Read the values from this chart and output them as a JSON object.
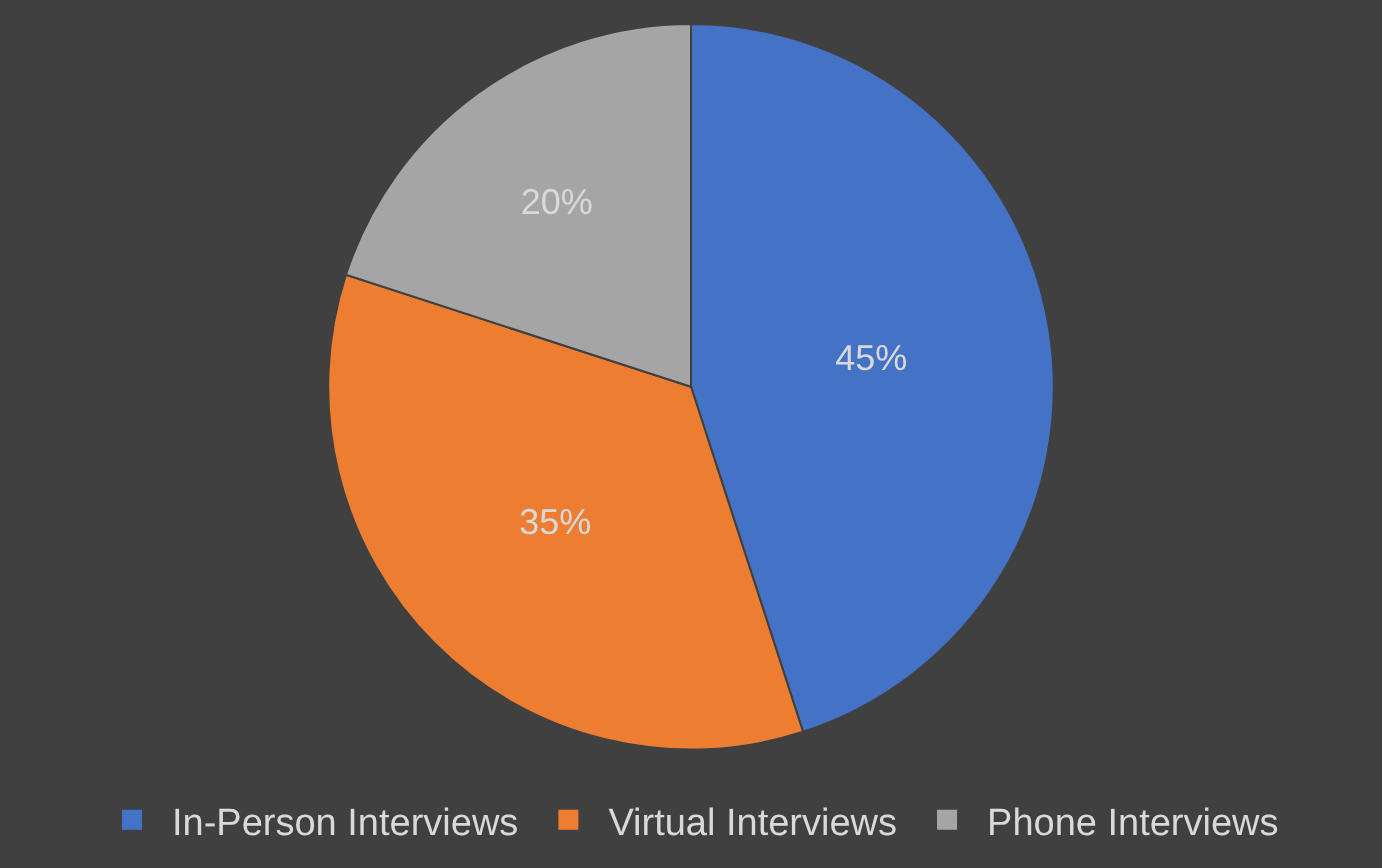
{
  "chart_data": {
    "type": "pie",
    "categories": [
      "In-Person Interviews",
      "Virtual Interviews",
      "Phone Interviews"
    ],
    "values": [
      45,
      35,
      20
    ],
    "colors": [
      "#4472c4",
      "#ed7d31",
      "#a5a5a5"
    ],
    "value_labels": [
      "45%",
      "35%",
      "20%"
    ],
    "legend": "bottom"
  }
}
